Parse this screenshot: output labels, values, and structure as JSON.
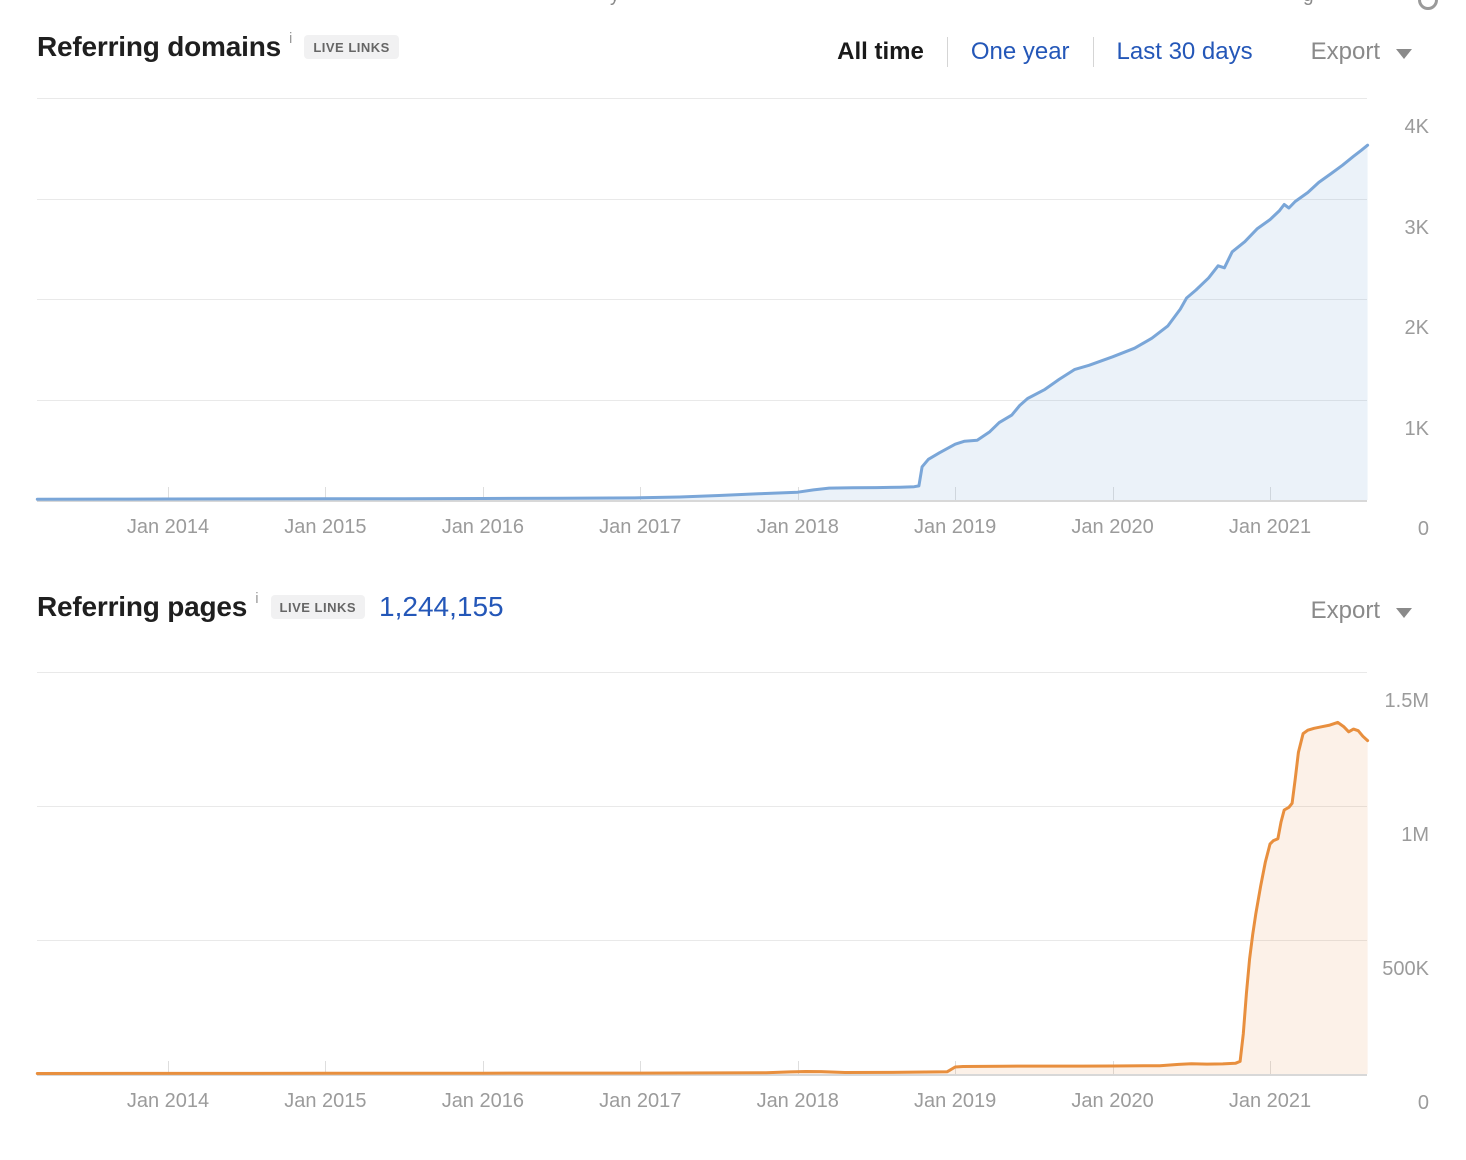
{
  "fragments": {
    "left": "y",
    "right": "g"
  },
  "section_domains": {
    "title": "Referring domains",
    "info": "i",
    "badge": "LIVE LINKS",
    "range_tabs": [
      {
        "label": "All time",
        "active": true
      },
      {
        "label": "One year",
        "active": false
      },
      {
        "label": "Last 30 days",
        "active": false
      }
    ],
    "export_label": "Export"
  },
  "section_pages": {
    "title": "Referring pages",
    "info": "i",
    "badge": "LIVE LINKS",
    "count": "1,244,155",
    "export_label": "Export"
  },
  "colors": {
    "blue_line": "#7aa6d8",
    "blue_fill": "rgba(122,166,216,0.15)",
    "orange_line": "#e88f3e",
    "orange_fill": "rgba(232,143,62,0.12)",
    "link_blue": "#2457b8",
    "axis_label": "#9b9b9b"
  },
  "chart_data": [
    {
      "type": "area",
      "title": "Referring domains",
      "legend": "none",
      "grid": true,
      "line_color": "#7aa6d8",
      "fill_color": "rgba(122,166,216,0.15)",
      "x_range": [
        2013.168,
        2021.616
      ],
      "y_range": [
        0,
        4000
      ],
      "y_ticks": [
        {
          "value": 4000,
          "label": "4K"
        },
        {
          "value": 3000,
          "label": "3K"
        },
        {
          "value": 2000,
          "label": "2K"
        },
        {
          "value": 1000,
          "label": "1K"
        },
        {
          "value": 0,
          "label": "0"
        }
      ],
      "x_ticks": [
        {
          "value": 2014,
          "label": "Jan 2014"
        },
        {
          "value": 2015,
          "label": "Jan 2015"
        },
        {
          "value": 2016,
          "label": "Jan 2016"
        },
        {
          "value": 2017,
          "label": "Jan 2017"
        },
        {
          "value": 2018,
          "label": "Jan 2018"
        },
        {
          "value": 2019,
          "label": "Jan 2019"
        },
        {
          "value": 2020,
          "label": "Jan 2020"
        },
        {
          "value": 2021,
          "label": "Jan 2021"
        }
      ],
      "points": [
        [
          2013.17,
          8
        ],
        [
          2013.6,
          9
        ],
        [
          2014,
          10
        ],
        [
          2014.5,
          11
        ],
        [
          2015,
          12
        ],
        [
          2015.5,
          13
        ],
        [
          2016,
          15
        ],
        [
          2016.5,
          17
        ],
        [
          2017,
          22
        ],
        [
          2017.25,
          30
        ],
        [
          2017.5,
          45
        ],
        [
          2017.75,
          62
        ],
        [
          2018,
          78
        ],
        [
          2018.1,
          100
        ],
        [
          2018.2,
          118
        ],
        [
          2018.35,
          121
        ],
        [
          2018.5,
          123
        ],
        [
          2018.65,
          127
        ],
        [
          2018.74,
          132
        ],
        [
          2018.77,
          140
        ],
        [
          2018.79,
          330
        ],
        [
          2018.83,
          405
        ],
        [
          2018.9,
          470
        ],
        [
          2019,
          555
        ],
        [
          2019.06,
          585
        ],
        [
          2019.14,
          595
        ],
        [
          2019.22,
          680
        ],
        [
          2019.28,
          770
        ],
        [
          2019.36,
          845
        ],
        [
          2019.41,
          940
        ],
        [
          2019.46,
          1010
        ],
        [
          2019.57,
          1100
        ],
        [
          2019.66,
          1200
        ],
        [
          2019.76,
          1300
        ],
        [
          2019.85,
          1340
        ],
        [
          2020,
          1425
        ],
        [
          2020.14,
          1510
        ],
        [
          2020.25,
          1610
        ],
        [
          2020.35,
          1730
        ],
        [
          2020.43,
          1900
        ],
        [
          2020.47,
          2010
        ],
        [
          2020.53,
          2090
        ],
        [
          2020.61,
          2210
        ],
        [
          2020.67,
          2330
        ],
        [
          2020.71,
          2310
        ],
        [
          2020.76,
          2470
        ],
        [
          2020.84,
          2570
        ],
        [
          2020.92,
          2700
        ],
        [
          2021,
          2790
        ],
        [
          2021.06,
          2880
        ],
        [
          2021.09,
          2940
        ],
        [
          2021.12,
          2905
        ],
        [
          2021.16,
          2970
        ],
        [
          2021.24,
          3060
        ],
        [
          2021.31,
          3160
        ],
        [
          2021.39,
          3250
        ],
        [
          2021.46,
          3330
        ],
        [
          2021.53,
          3420
        ],
        [
          2021.58,
          3480
        ],
        [
          2021.62,
          3530
        ]
      ]
    },
    {
      "type": "area",
      "title": "Referring pages",
      "legend": "none",
      "grid": true,
      "line_color": "#e88f3e",
      "fill_color": "rgba(232,143,62,0.12)",
      "x_range": [
        2013.168,
        2021.616
      ],
      "y_range": [
        0,
        1500000
      ],
      "y_ticks": [
        {
          "value": 1500000,
          "label": "1.5M"
        },
        {
          "value": 1000000,
          "label": "1M"
        },
        {
          "value": 500000,
          "label": "500K"
        },
        {
          "value": 0,
          "label": "0"
        }
      ],
      "x_ticks": [
        {
          "value": 2014,
          "label": "Jan 2014"
        },
        {
          "value": 2015,
          "label": "Jan 2015"
        },
        {
          "value": 2016,
          "label": "Jan 2016"
        },
        {
          "value": 2017,
          "label": "Jan 2017"
        },
        {
          "value": 2018,
          "label": "Jan 2018"
        },
        {
          "value": 2019,
          "label": "Jan 2019"
        },
        {
          "value": 2020,
          "label": "Jan 2020"
        },
        {
          "value": 2021,
          "label": "Jan 2021"
        }
      ],
      "points": [
        [
          2013.17,
          2000
        ],
        [
          2014,
          2200
        ],
        [
          2015,
          2500
        ],
        [
          2016,
          2800
        ],
        [
          2017,
          3200
        ],
        [
          2017.8,
          5000
        ],
        [
          2017.95,
          8000
        ],
        [
          2018.05,
          9500
        ],
        [
          2018.15,
          9000
        ],
        [
          2018.3,
          5500
        ],
        [
          2018.6,
          6000
        ],
        [
          2018.95,
          8500
        ],
        [
          2019.0,
          26000
        ],
        [
          2019.05,
          28000
        ],
        [
          2019.3,
          29000
        ],
        [
          2019.8,
          29500
        ],
        [
          2020,
          30000
        ],
        [
          2020.3,
          31000
        ],
        [
          2020.42,
          36000
        ],
        [
          2020.5,
          38000
        ],
        [
          2020.6,
          37000
        ],
        [
          2020.7,
          37500
        ],
        [
          2020.78,
          40000
        ],
        [
          2020.81,
          47000
        ],
        [
          2020.83,
          150000
        ],
        [
          2020.85,
          300000
        ],
        [
          2020.87,
          430000
        ],
        [
          2020.89,
          520000
        ],
        [
          2020.91,
          600000
        ],
        [
          2020.94,
          700000
        ],
        [
          2020.97,
          790000
        ],
        [
          2021,
          858000
        ],
        [
          2021.02,
          870000
        ],
        [
          2021.05,
          878000
        ],
        [
          2021.07,
          940000
        ],
        [
          2021.09,
          985000
        ],
        [
          2021.12,
          995000
        ],
        [
          2021.14,
          1010000
        ],
        [
          2021.16,
          1100000
        ],
        [
          2021.18,
          1200000
        ],
        [
          2021.21,
          1270000
        ],
        [
          2021.24,
          1283000
        ],
        [
          2021.28,
          1290000
        ],
        [
          2021.33,
          1296000
        ],
        [
          2021.38,
          1302000
        ],
        [
          2021.43,
          1312000
        ],
        [
          2021.47,
          1295000
        ],
        [
          2021.5,
          1277000
        ],
        [
          2021.53,
          1287000
        ],
        [
          2021.56,
          1281000
        ],
        [
          2021.59,
          1260000
        ],
        [
          2021.62,
          1244155
        ]
      ]
    }
  ]
}
